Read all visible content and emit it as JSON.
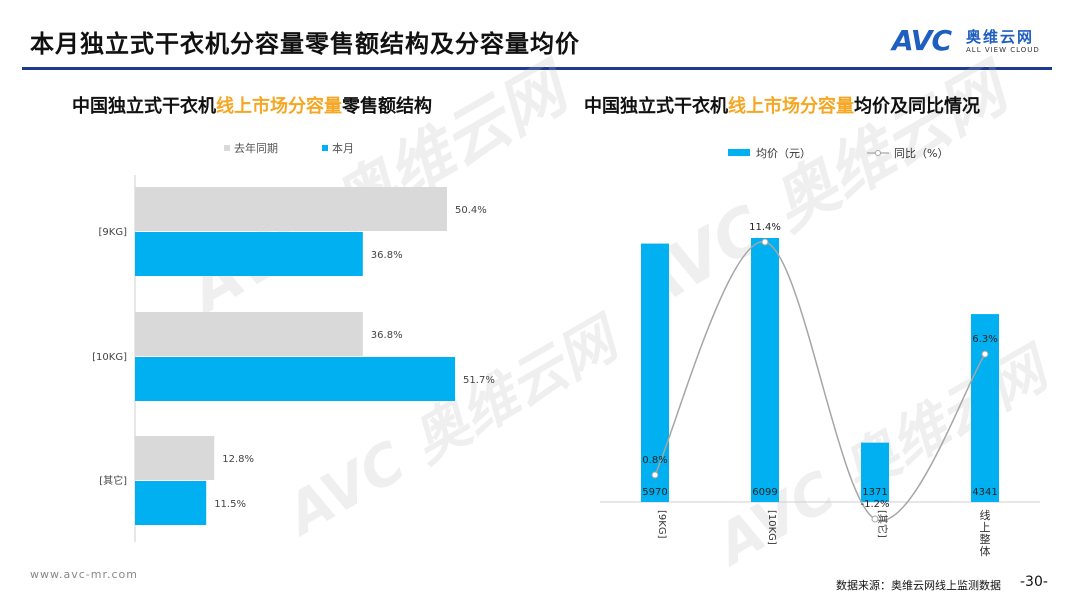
{
  "page": {
    "title": "本月独立式干衣机分容量零售额结构及分容量均价",
    "logo_mark": "AVC",
    "logo_cn": "奥维云网",
    "logo_en": "ALL VIEW CLOUD",
    "footer_url": "www.avc-mr.com",
    "footer_source": "数据来源：奥维云网线上监测数据",
    "page_number": "-30-"
  },
  "left_title": {
    "pre": "中国独立式干衣机",
    "highlight": "线上市场分容量",
    "post": "零售额结构"
  },
  "right_title": {
    "pre": "中国独立式干衣机",
    "highlight": "线上市场分容量",
    "post": "均价及同比情况"
  },
  "colors": {
    "accent": "#00b0f0",
    "grey": "#d9d9d9",
    "line": "#a6a6a6",
    "highlight": "#f5a623",
    "rule": "#1f3a93"
  },
  "chart_data": [
    {
      "type": "bar",
      "orientation": "horizontal",
      "categories": [
        "[9KG]",
        "[10KG]",
        "[其它]"
      ],
      "series": [
        {
          "name": "去年同期",
          "values": [
            50.4,
            36.8,
            12.8
          ],
          "labels": [
            "50.4%",
            "36.8%",
            "12.8%"
          ]
        },
        {
          "name": "本月",
          "values": [
            36.8,
            51.7,
            11.5
          ],
          "labels": [
            "36.8%",
            "51.7%",
            "11.5%"
          ]
        }
      ],
      "xlim": [
        0,
        60
      ],
      "legend": "top"
    },
    {
      "type": "bar+line",
      "categories": [
        "[9KG]",
        "[10KG]",
        "[其它]",
        "线上整体"
      ],
      "bar_series": {
        "name": "均价（元）",
        "values": [
          5970,
          6099,
          1371,
          4341
        ],
        "labels": [
          "5970",
          "6099",
          "1371",
          "4341"
        ]
      },
      "line_series": {
        "name": "同比（%）",
        "values": [
          0.8,
          11.4,
          -1.2,
          6.3
        ],
        "labels": [
          "0.8%",
          "11.4%",
          "-1.2%",
          "6.3%"
        ]
      },
      "bar_ylim": [
        0,
        6500
      ],
      "line_ylim": [
        -2,
        14
      ],
      "legend": "top"
    }
  ]
}
